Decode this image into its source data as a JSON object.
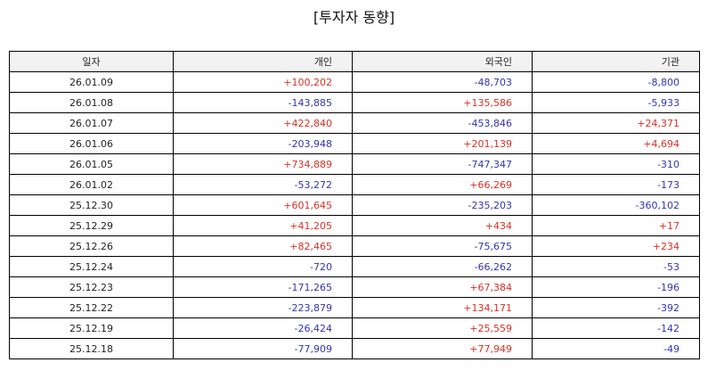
{
  "title": "[투자자 동향]",
  "colors": {
    "positive": "#d93025",
    "negative": "#3333b3",
    "header_bg": "#f2f2f2"
  },
  "table": {
    "headers": [
      "일자",
      "개인",
      "외국인",
      "기관"
    ],
    "rows": [
      [
        "26.01.09",
        "+100,202",
        "-48,703",
        "-8,800"
      ],
      [
        "26.01.08",
        "-143,885",
        "+135,586",
        "-5,933"
      ],
      [
        "26.01.07",
        "+422,840",
        "-453,846",
        "+24,371"
      ],
      [
        "26.01.06",
        "-203,948",
        "+201,139",
        "+4,694"
      ],
      [
        "26.01.05",
        "+734,889",
        "-747,347",
        "-310"
      ],
      [
        "26.01.02",
        "-53,272",
        "+66,269",
        "-173"
      ],
      [
        "25.12.30",
        "+601,645",
        "-235,203",
        "-360,102"
      ],
      [
        "25.12.29",
        "+41,205",
        "+434",
        "+17"
      ],
      [
        "25.12.26",
        "+82,465",
        "-75,675",
        "+234"
      ],
      [
        "25.12.24",
        "-720",
        "-66,262",
        "-53"
      ],
      [
        "25.12.23",
        "-171,265",
        "+67,384",
        "-196"
      ],
      [
        "25.12.22",
        "-223,879",
        "+134,171",
        "-392"
      ],
      [
        "25.12.19",
        "-26,424",
        "+25,559",
        "-142"
      ],
      [
        "25.12.18",
        "-77,909",
        "+77,949",
        "-49"
      ]
    ]
  }
}
